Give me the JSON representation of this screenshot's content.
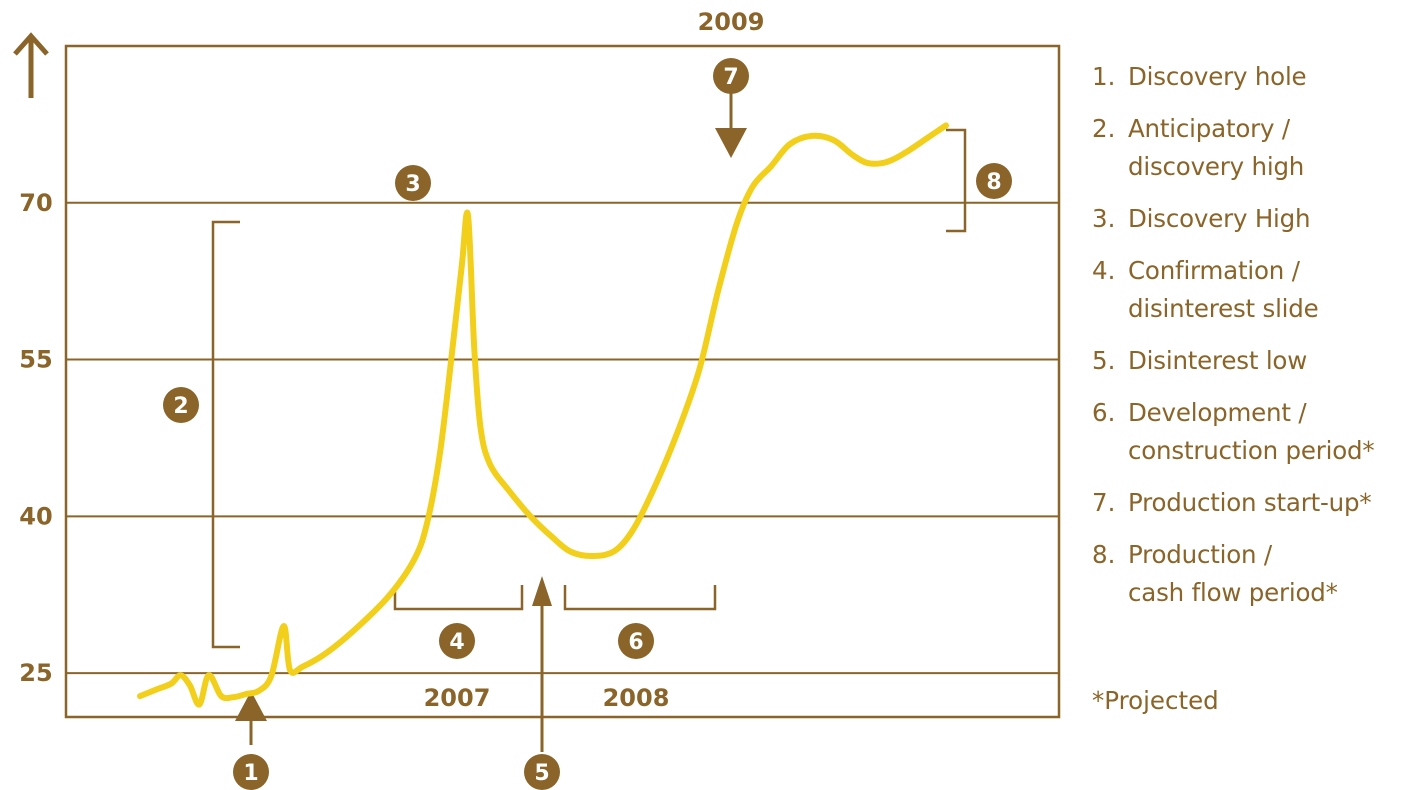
{
  "chart_data": {
    "type": "line",
    "title": "",
    "xlabel": "",
    "ylabel": "",
    "ylim": [
      20.8,
      85
    ],
    "y_ticks": [
      25,
      40,
      55,
      70
    ],
    "grid": true,
    "year_labels": [
      "2007",
      "2008",
      "2009"
    ],
    "series": [
      {
        "values": [
          [
            0.0,
            22.8
          ],
          [
            0.5,
            23.4
          ],
          [
            1.0,
            24.0
          ],
          [
            1.3,
            24.8
          ],
          [
            1.6,
            23.8
          ],
          [
            1.9,
            22.0
          ],
          [
            2.2,
            24.8
          ],
          [
            2.6,
            22.8
          ],
          [
            3.0,
            22.7
          ],
          [
            3.4,
            23.0
          ],
          [
            3.8,
            23.3
          ],
          [
            4.2,
            24.7
          ],
          [
            4.6,
            29.5
          ],
          [
            4.8,
            25.3
          ],
          [
            5.2,
            25.6
          ],
          [
            6.0,
            27.0
          ],
          [
            7.0,
            29.5
          ],
          [
            8.0,
            32.5
          ],
          [
            8.8,
            36.0
          ],
          [
            9.2,
            39.5
          ],
          [
            9.6,
            46.0
          ],
          [
            10.0,
            56.0
          ],
          [
            10.3,
            64.0
          ],
          [
            10.5,
            68.8
          ],
          [
            10.7,
            56.0
          ],
          [
            10.9,
            48.5
          ],
          [
            11.2,
            45.0
          ],
          [
            11.8,
            42.5
          ],
          [
            12.5,
            40.0
          ],
          [
            13.2,
            38.0
          ],
          [
            13.8,
            36.6
          ],
          [
            14.5,
            36.2
          ],
          [
            15.2,
            36.7
          ],
          [
            15.8,
            38.8
          ],
          [
            16.5,
            43.0
          ],
          [
            17.2,
            48.0
          ],
          [
            17.9,
            54.0
          ],
          [
            18.5,
            61.5
          ],
          [
            19.1,
            68.0
          ],
          [
            19.6,
            71.5
          ],
          [
            20.2,
            73.5
          ],
          [
            20.8,
            75.6
          ],
          [
            21.5,
            76.4
          ],
          [
            22.2,
            76.0
          ],
          [
            22.8,
            74.6
          ],
          [
            23.3,
            73.8
          ],
          [
            23.9,
            73.9
          ],
          [
            24.5,
            74.8
          ],
          [
            25.2,
            76.2
          ],
          [
            25.8,
            77.4
          ]
        ]
      }
    ],
    "annotations": [
      {
        "number": "1",
        "label": "Discovery hole"
      },
      {
        "number": "2",
        "label": "Anticipatory /\ndiscovery high"
      },
      {
        "number": "3",
        "label": "Discovery High"
      },
      {
        "number": "4",
        "label": "Confirmation /\ndisinterest slide"
      },
      {
        "number": "5",
        "label": "Disinterest low"
      },
      {
        "number": "6",
        "label": "Development /\nconstruction period*"
      },
      {
        "number": "7",
        "label": "Production start-up*"
      },
      {
        "number": "8",
        "label": "Production /\ncash flow period*"
      }
    ]
  },
  "legend": [
    {
      "num": "1.",
      "text": "Discovery hole"
    },
    {
      "num": "2.",
      "text": "Anticipatory /\ndiscovery high"
    },
    {
      "num": "3.",
      "text": "Discovery High"
    },
    {
      "num": "4.",
      "text": "Confirmation /\ndisinterest slide"
    },
    {
      "num": "5.",
      "text": "Disinterest low"
    },
    {
      "num": "6.",
      "text": "Development /\nconstruction period*"
    },
    {
      "num": "7.",
      "text": "Production start-up*"
    },
    {
      "num": "8.",
      "text": "Production /\ncash flow period*"
    }
  ],
  "footnote": "*Projected",
  "colors": {
    "frame": "#8a6428",
    "line": "#f2cf1b",
    "marker": "#8a6428",
    "marker_text": "#ffffff",
    "text": "#8a6428"
  }
}
